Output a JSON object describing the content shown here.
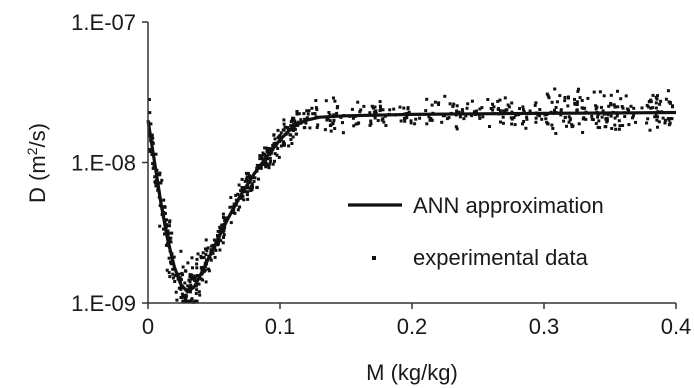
{
  "chart_data": {
    "type": "scatter",
    "title": "",
    "x_scale": "linear",
    "y_scale": "log",
    "xlim": [
      0,
      0.4
    ],
    "ylim": [
      1e-09,
      1e-07
    ],
    "grid": false,
    "legend_position": "right",
    "x_ticks": [
      0,
      0.1,
      0.2,
      0.3,
      0.4
    ],
    "x_tick_labels": [
      "0",
      "0.1",
      "0.2",
      "0.3",
      "0.4"
    ],
    "y_ticks": [
      1e-09,
      1e-08,
      1e-07
    ],
    "y_tick_labels": [
      "1.E-09",
      "1.E-08",
      "1.E-07"
    ],
    "xlabel": {
      "main": "M (kg/kg)"
    },
    "ylabel": {
      "base": "D (m",
      "sup": "2",
      "tail": "/s)"
    },
    "series": [
      {
        "name": "ANN approximation",
        "kind": "line",
        "color": "#111111",
        "x": [
          0.0,
          0.005,
          0.01,
          0.015,
          0.02,
          0.025,
          0.03,
          0.035,
          0.04,
          0.05,
          0.06,
          0.07,
          0.08,
          0.09,
          0.1,
          0.11,
          0.12,
          0.13,
          0.15,
          0.2,
          0.25,
          0.3,
          0.35,
          0.4
        ],
        "y": [
          2e-08,
          1e-08,
          5e-09,
          2.8e-09,
          1.8e-09,
          1.35e-09,
          1.2e-09,
          1.3e-09,
          1.6e-09,
          2.5e-09,
          3.9e-09,
          5.8e-09,
          8.2e-09,
          1.1e-08,
          1.45e-08,
          1.8e-08,
          2e-08,
          2.1e-08,
          2.15e-08,
          2.2e-08,
          2.22e-08,
          2.24e-08,
          2.25e-08,
          2.27e-08
        ]
      },
      {
        "name": "experimental data",
        "kind": "points",
        "color": "#111111",
        "segments": [
          {
            "x0": 0.0,
            "x1": 0.005,
            "n": 22,
            "mode": "ann",
            "spread": 0.15
          },
          {
            "x0": 0.005,
            "x1": 0.045,
            "n": 170,
            "mode": "ann",
            "spread": 0.14
          },
          {
            "x0": 0.045,
            "x1": 0.115,
            "n": 240,
            "mode": "ann",
            "spread": 0.07
          },
          {
            "x0": 0.115,
            "x1": 0.16,
            "n": 55,
            "mode": "ann",
            "spread": 0.08
          },
          {
            "x0": 0.16,
            "x1": 0.3,
            "n": 150,
            "mode": "ann",
            "spread": 0.07
          },
          {
            "x0": 0.3,
            "x1": 0.4,
            "n": 170,
            "mode": "ann",
            "spread": 0.11
          }
        ]
      }
    ]
  }
}
